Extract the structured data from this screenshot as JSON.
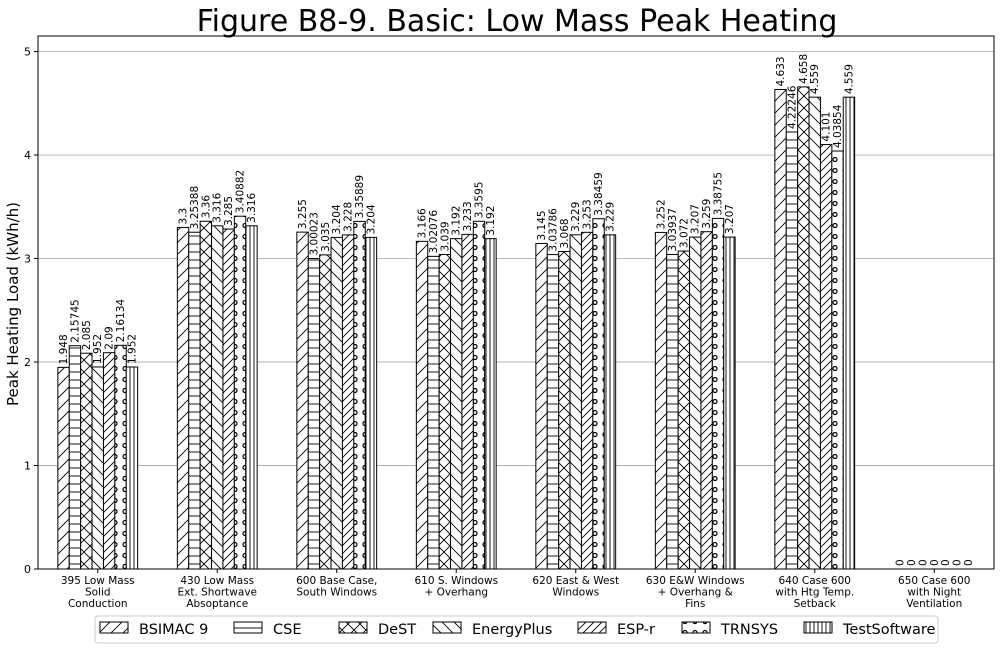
{
  "chart_data": {
    "type": "bar",
    "title": "Figure B8-9.  Basic: Low Mass Peak Heating",
    "ylabel": "Peak Heating Load (kWh/h)",
    "xlabel": "",
    "ylim": [
      0,
      5.15
    ],
    "yticks": [
      "0",
      "1",
      "2",
      "3",
      "4",
      "5"
    ],
    "grid": "horizontal",
    "legend_position": "bottom",
    "categories": [
      [
        "395 Low Mass",
        "Solid",
        "Conduction"
      ],
      [
        "430 Low Mass",
        "Ext. Shortwave",
        "Absoptance"
      ],
      [
        "600 Base Case,",
        "South Windows"
      ],
      [
        "610 S. Windows",
        "+ Overhang"
      ],
      [
        "620 East & West",
        "Windows"
      ],
      [
        "630 E&W Windows",
        "+ Overhang &",
        "Fins"
      ],
      [
        "640 Case 600",
        "with Htg Temp.",
        "Setback"
      ],
      [
        "650 Case 600",
        "with Night",
        "Ventilation"
      ]
    ],
    "series": [
      {
        "name": "BSIMAC 9",
        "pattern": "diag-up",
        "values": [
          1.948,
          3.3,
          3.255,
          3.166,
          3.145,
          3.252,
          4.633,
          0
        ],
        "labels": [
          "1.948",
          "3.3",
          "3.255",
          "3.166",
          "3.145",
          "3.252",
          "4.633",
          "0"
        ]
      },
      {
        "name": "CSE",
        "pattern": "hlines",
        "values": [
          2.15745,
          3.25388,
          3.00023,
          3.02076,
          3.03786,
          3.03937,
          4.22246,
          0
        ],
        "labels": [
          "2.15745",
          "3.25388",
          "3.00023",
          "3.02076",
          "3.03786",
          "3.03937",
          "4.22246",
          "0"
        ]
      },
      {
        "name": "DeST",
        "pattern": "crosshatch",
        "values": [
          2.085,
          3.36,
          3.035,
          3.039,
          3.068,
          3.072,
          4.658,
          0
        ],
        "labels": [
          "2.085",
          "3.36",
          "3.035",
          "3.039",
          "3.068",
          "3.072",
          "4.658",
          "0"
        ]
      },
      {
        "name": "EnergyPlus",
        "pattern": "diag-down",
        "values": [
          1.952,
          3.316,
          3.204,
          3.192,
          3.229,
          3.207,
          4.559,
          0
        ],
        "labels": [
          "1.952",
          "3.316",
          "3.204",
          "3.192",
          "3.229",
          "3.207",
          "4.559",
          "0"
        ]
      },
      {
        "name": "ESP-r",
        "pattern": "diag-up-dense",
        "values": [
          2.09,
          3.285,
          3.228,
          3.233,
          3.253,
          3.259,
          4.101,
          0
        ],
        "labels": [
          "2.09",
          "3.285",
          "3.228",
          "3.233",
          "3.253",
          "3.259",
          "4.101",
          "0"
        ]
      },
      {
        "name": "TRNSYS",
        "pattern": "circles",
        "values": [
          2.16134,
          3.40882,
          3.35889,
          3.3595,
          3.38459,
          3.38755,
          4.03854,
          0
        ],
        "labels": [
          "2.16134",
          "3.40882",
          "3.35889",
          "3.3595",
          "3.38459",
          "3.38755",
          "4.03854",
          "0"
        ]
      },
      {
        "name": "TestSoftware",
        "pattern": "vlines",
        "values": [
          1.952,
          3.316,
          3.204,
          3.192,
          3.229,
          3.207,
          4.559,
          0
        ],
        "labels": [
          "1.952",
          "3.316",
          "3.204",
          "3.192",
          "3.229",
          "3.207",
          "4.559",
          "0"
        ]
      }
    ]
  }
}
